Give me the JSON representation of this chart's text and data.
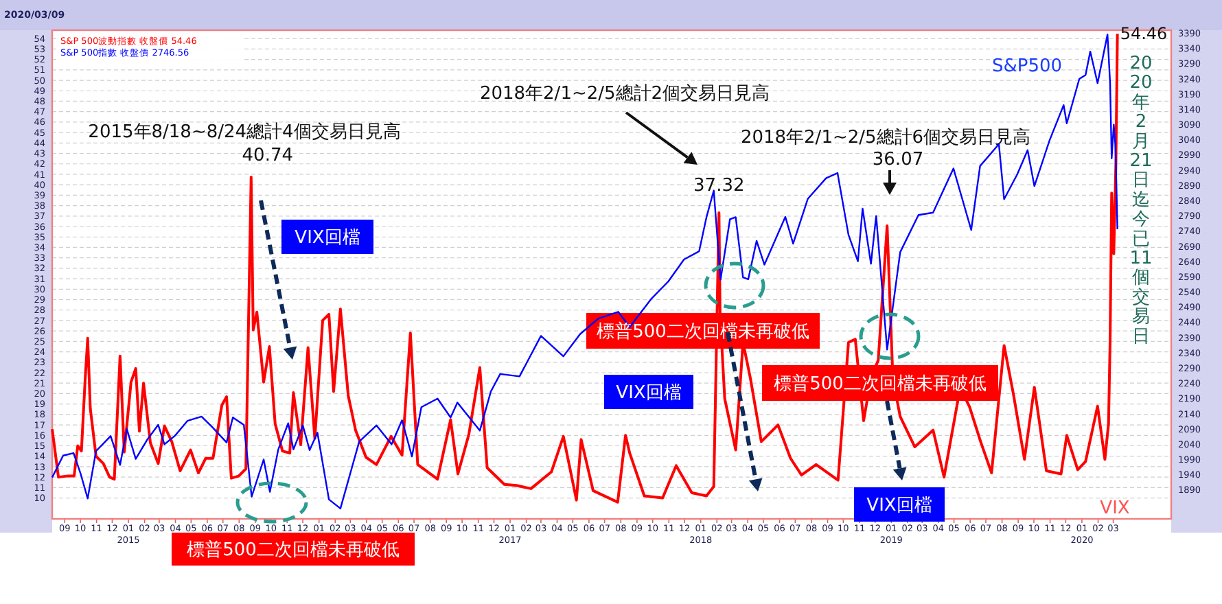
{
  "chart_data": {
    "type": "line",
    "title": "2020/03/09",
    "annotations": [
      "2015年8/18~8/24總計4個交易日見高",
      {
        "text": "40.74",
        "x": "2015-08-24",
        "y": 40.74
      },
      "VIX回檔",
      "2018年2/1~2/5總計2個交易日見高",
      {
        "text": "37.32",
        "x": "2018-02-05",
        "y": 37.32
      },
      "2018年2/1~2/5總計6個交易日見高",
      "36.07",
      "標普500二次回檔未再破低",
      "VIX回檔",
      "標普500二次回檔未再破低",
      "VIX回檔",
      "標普500二次回檔未再破低",
      {
        "text": "54.46",
        "x": "2020-03-09",
        "y": 54.46
      },
      "2020年2月21日迄今已11個交易日",
      "S&P500",
      "VIX"
    ],
    "legend": "top left",
    "grid": "y",
    "xlim": [
      "2014-08-08",
      "2020-06-20"
    ],
    "xticks": [
      {
        "value": "2014-09-01",
        "label": "09"
      },
      {
        "value": "2014-10-01",
        "label": "10"
      },
      {
        "value": "2014-11-01",
        "label": "11"
      },
      {
        "value": "2014-12-01",
        "label": "12"
      },
      {
        "value": "2015-01-01",
        "label": "01\n2015"
      },
      {
        "value": "2015-02-01",
        "label": "02"
      },
      {
        "value": "2015-03-01",
        "label": "03"
      },
      {
        "value": "2015-04-01",
        "label": "04"
      },
      {
        "value": "2015-05-01",
        "label": "05"
      },
      {
        "value": "2015-06-01",
        "label": "06"
      },
      {
        "value": "2015-07-01",
        "label": "07"
      },
      {
        "value": "2015-08-01",
        "label": "08"
      },
      {
        "value": "2015-09-01",
        "label": "09"
      },
      {
        "value": "2015-10-01",
        "label": "10"
      },
      {
        "value": "2015-11-01",
        "label": "11"
      },
      {
        "value": "2015-12-01",
        "label": "12"
      },
      {
        "value": "2016-01-01",
        "label": "01"
      },
      {
        "value": "2016-02-01",
        "label": "02"
      },
      {
        "value": "2016-03-01",
        "label": "03"
      },
      {
        "value": "2016-04-01",
        "label": "04"
      },
      {
        "value": "2016-05-01",
        "label": "05"
      },
      {
        "value": "2016-06-01",
        "label": "06"
      },
      {
        "value": "2016-07-01",
        "label": "07"
      },
      {
        "value": "2016-08-01",
        "label": "08"
      },
      {
        "value": "2016-09-01",
        "label": "09"
      },
      {
        "value": "2016-10-01",
        "label": "10"
      },
      {
        "value": "2016-11-01",
        "label": "11"
      },
      {
        "value": "2016-12-01",
        "label": "12"
      },
      {
        "value": "2017-01-01",
        "label": "01\n2017"
      },
      {
        "value": "2017-02-01",
        "label": "02"
      },
      {
        "value": "2017-03-01",
        "label": "03"
      },
      {
        "value": "2017-04-01",
        "label": "04"
      },
      {
        "value": "2017-05-01",
        "label": "05"
      },
      {
        "value": "2017-06-01",
        "label": "06"
      },
      {
        "value": "2017-07-01",
        "label": "07"
      },
      {
        "value": "2017-08-01",
        "label": "08"
      },
      {
        "value": "2017-09-01",
        "label": "09"
      },
      {
        "value": "2017-10-01",
        "label": "10"
      },
      {
        "value": "2017-11-01",
        "label": "11"
      },
      {
        "value": "2017-12-01",
        "label": "12"
      },
      {
        "value": "2018-01-01",
        "label": "01\n2018"
      },
      {
        "value": "2018-02-01",
        "label": "02"
      },
      {
        "value": "2018-03-01",
        "label": "03"
      },
      {
        "value": "2018-04-01",
        "label": "04"
      },
      {
        "value": "2018-05-01",
        "label": "05"
      },
      {
        "value": "2018-06-01",
        "label": "06"
      },
      {
        "value": "2018-07-01",
        "label": "07"
      },
      {
        "value": "2018-08-01",
        "label": "08"
      },
      {
        "value": "2018-09-01",
        "label": "09"
      },
      {
        "value": "2018-10-01",
        "label": "10"
      },
      {
        "value": "2018-11-01",
        "label": "11"
      },
      {
        "value": "2018-12-01",
        "label": "12"
      },
      {
        "value": "2019-01-01",
        "label": "01\n2019"
      },
      {
        "value": "2019-02-01",
        "label": "02"
      },
      {
        "value": "2019-03-01",
        "label": "03"
      },
      {
        "value": "2019-04-01",
        "label": "04"
      },
      {
        "value": "2019-05-01",
        "label": "05"
      },
      {
        "value": "2019-06-01",
        "label": "06"
      },
      {
        "value": "2019-07-01",
        "label": "07"
      },
      {
        "value": "2019-08-01",
        "label": "08"
      },
      {
        "value": "2019-09-01",
        "label": "09"
      },
      {
        "value": "2019-10-01",
        "label": "10"
      },
      {
        "value": "2019-11-01",
        "label": "11"
      },
      {
        "value": "2019-12-01",
        "label": "12"
      },
      {
        "value": "2020-01-01",
        "label": "01\n2020"
      },
      {
        "value": "2020-02-01",
        "label": "02"
      },
      {
        "value": "2020-03-01",
        "label": "03"
      }
    ],
    "ylim": [
      8,
      54.8
    ],
    "yticks": [
      10,
      11,
      12,
      13,
      14,
      15,
      16,
      17,
      18,
      19,
      20,
      21,
      22,
      23,
      24,
      25,
      26,
      27,
      28,
      29,
      30,
      31,
      32,
      33,
      34,
      35,
      36,
      37,
      38,
      39,
      40,
      41,
      42,
      43,
      44,
      45,
      46,
      47,
      48,
      49,
      50,
      51,
      52,
      53,
      54
    ],
    "y2lim": [
      1795,
      3400
    ],
    "y2ticks": [
      1890,
      1940,
      1990,
      2040,
      2090,
      2140,
      2190,
      2240,
      2290,
      2340,
      2390,
      2440,
      2490,
      2540,
      2590,
      2640,
      2690,
      2740,
      2790,
      2840,
      2890,
      2940,
      2990,
      3040,
      3090,
      3140,
      3190,
      3240,
      3290,
      3340,
      3390
    ],
    "series": [
      {
        "name": "S&P 500波動指數 收盤價 54.46",
        "color": "#ff0000",
        "x": [
          "2014-08-08",
          "2014-08-20",
          "2014-09-05",
          "2014-09-19",
          "2014-09-26",
          "2014-10-03",
          "2014-10-10",
          "2014-10-15",
          "2014-10-20",
          "2014-10-31",
          "2014-11-14",
          "2014-11-26",
          "2014-12-05",
          "2014-12-16",
          "2014-12-24",
          "2015-01-06",
          "2015-01-15",
          "2015-01-22",
          "2015-01-30",
          "2015-02-12",
          "2015-02-27",
          "2015-03-11",
          "2015-03-25",
          "2015-04-10",
          "2015-04-30",
          "2015-05-15",
          "2015-05-29",
          "2015-06-12",
          "2015-06-29",
          "2015-07-08",
          "2015-07-17",
          "2015-07-31",
          "2015-08-14",
          "2015-08-24",
          "2015-08-28",
          "2015-09-04",
          "2015-09-17",
          "2015-09-28",
          "2015-10-09",
          "2015-10-23",
          "2015-11-06",
          "2015-11-13",
          "2015-11-27",
          "2015-12-11",
          "2015-12-24",
          "2016-01-08",
          "2016-01-20",
          "2016-01-29",
          "2016-02-11",
          "2016-02-26",
          "2016-03-11",
          "2016-03-31",
          "2016-04-20",
          "2016-05-18",
          "2016-06-08",
          "2016-06-24",
          "2016-07-08",
          "2016-08-15",
          "2016-09-09",
          "2016-09-23",
          "2016-10-14",
          "2016-11-04",
          "2016-11-18",
          "2016-12-21",
          "2017-01-13",
          "2017-02-10",
          "2017-03-21",
          "2017-04-13",
          "2017-05-08",
          "2017-05-17",
          "2017-06-09",
          "2017-07-26",
          "2017-08-10",
          "2017-08-18",
          "2017-09-15",
          "2017-10-20",
          "2017-11-15",
          "2017-12-15",
          "2018-01-12",
          "2018-01-26",
          "2018-02-05",
          "2018-02-07",
          "2018-02-16",
          "2018-03-09",
          "2018-03-23",
          "2018-04-06",
          "2018-04-27",
          "2018-05-29",
          "2018-06-22",
          "2018-07-13",
          "2018-08-10",
          "2018-09-21",
          "2018-10-11",
          "2018-10-24",
          "2018-11-09",
          "2018-11-23",
          "2018-12-07",
          "2018-12-24",
          "2019-01-04",
          "2019-01-18",
          "2019-02-15",
          "2019-03-22",
          "2019-04-12",
          "2019-05-13",
          "2019-05-31",
          "2019-06-21",
          "2019-07-12",
          "2019-08-05",
          "2019-08-23",
          "2019-09-13",
          "2019-10-02",
          "2019-10-25",
          "2019-11-22",
          "2019-12-03",
          "2019-12-24",
          "2020-01-08",
          "2020-01-31",
          "2020-02-14",
          "2020-02-21",
          "2020-02-24",
          "2020-02-27",
          "2020-03-02",
          "2020-03-05",
          "2020-03-06",
          "2020-03-09"
        ],
        "values": [
          16.6,
          12.0,
          12.1,
          12.1,
          15.0,
          14.5,
          21.2,
          25.3,
          18.6,
          14.0,
          13.3,
          12.0,
          11.8,
          23.6,
          14.4,
          21.1,
          22.4,
          16.4,
          21.0,
          15.3,
          13.3,
          16.9,
          15.4,
          12.6,
          14.6,
          12.4,
          13.8,
          13.8,
          18.9,
          19.7,
          11.9,
          12.1,
          12.8,
          40.74,
          26.1,
          27.8,
          21.1,
          24.5,
          17.1,
          14.5,
          14.3,
          20.1,
          15.1,
          24.4,
          15.7,
          27.0,
          27.6,
          20.2,
          28.1,
          19.8,
          16.5,
          13.9,
          13.2,
          15.9,
          14.1,
          25.8,
          13.2,
          11.8,
          17.5,
          12.3,
          16.1,
          22.5,
          12.9,
          11.3,
          11.2,
          10.9,
          12.5,
          15.9,
          9.8,
          15.6,
          10.7,
          9.6,
          16.0,
          14.3,
          10.2,
          10.0,
          13.1,
          10.5,
          10.2,
          11.1,
          37.32,
          27.7,
          19.5,
          14.6,
          24.9,
          21.5,
          15.4,
          17.0,
          13.8,
          12.2,
          13.2,
          11.7,
          24.9,
          25.2,
          17.4,
          21.5,
          23.2,
          36.07,
          21.4,
          17.8,
          14.9,
          16.5,
          12.0,
          20.6,
          18.7,
          15.4,
          12.4,
          24.6,
          19.9,
          13.7,
          20.6,
          12.6,
          12.3,
          16.0,
          12.7,
          13.5,
          18.8,
          13.7,
          17.1,
          25.0,
          39.2,
          33.4,
          39.6,
          41.9,
          54.46
        ]
      },
      {
        "name": "S&P 500指數 收盤價 2746.56",
        "color": "#0000ff",
        "axis": "y2",
        "x": [
          "2014-08-08",
          "2014-08-29",
          "2014-09-18",
          "2014-10-01",
          "2014-10-15",
          "2014-10-31",
          "2014-11-28",
          "2014-12-16",
          "2014-12-29",
          "2015-01-15",
          "2015-02-06",
          "2015-02-27",
          "2015-03-11",
          "2015-03-31",
          "2015-04-24",
          "2015-05-21",
          "2015-06-12",
          "2015-07-08",
          "2015-07-20",
          "2015-08-10",
          "2015-08-25",
          "2015-09-17",
          "2015-09-29",
          "2015-10-15",
          "2015-11-03",
          "2015-11-13",
          "2015-12-01",
          "2015-12-14",
          "2015-12-29",
          "2016-01-20",
          "2016-02-11",
          "2016-03-18",
          "2016-04-20",
          "2016-05-19",
          "2016-06-08",
          "2016-06-27",
          "2016-07-15",
          "2016-08-15",
          "2016-09-09",
          "2016-09-22",
          "2016-11-04",
          "2016-11-25",
          "2016-12-13",
          "2017-01-19",
          "2017-03-01",
          "2017-04-13",
          "2017-05-15",
          "2017-06-19",
          "2017-07-27",
          "2017-08-18",
          "2017-09-29",
          "2017-10-31",
          "2017-11-30",
          "2017-12-29",
          "2018-01-12",
          "2018-01-26",
          "2018-02-08",
          "2018-02-26",
          "2018-03-09",
          "2018-03-23",
          "2018-04-02",
          "2018-04-18",
          "2018-05-03",
          "2018-06-12",
          "2018-06-27",
          "2018-07-25",
          "2018-08-29",
          "2018-09-20",
          "2018-10-11",
          "2018-10-29",
          "2018-11-07",
          "2018-11-23",
          "2018-12-03",
          "2018-12-24",
          "2019-01-18",
          "2019-02-22",
          "2019-03-22",
          "2019-04-30",
          "2019-06-03",
          "2019-06-20",
          "2019-07-26",
          "2019-08-05",
          "2019-08-30",
          "2019-09-19",
          "2019-10-02",
          "2019-10-31",
          "2019-11-27",
          "2019-12-03",
          "2019-12-27",
          "2020-01-08",
          "2020-01-17",
          "2020-01-31",
          "2020-02-19",
          "2020-02-24",
          "2020-02-27",
          "2020-03-02",
          "2020-03-05",
          "2020-03-06",
          "2020-03-09"
        ],
        "values": [
          1931,
          2003,
          2011,
          1946,
          1862,
          2018,
          2067,
          1972,
          2090,
          1992,
          2055,
          2104,
          2040,
          2068,
          2117,
          2131,
          2094,
          2046,
          2128,
          2104,
          1868,
          1990,
          1884,
          2023,
          2109,
          2023,
          2102,
          2021,
          2078,
          1859,
          1829,
          2049,
          2102,
          2040,
          2119,
          2000,
          2162,
          2190,
          2128,
          2177,
          2085,
          2213,
          2271,
          2263,
          2396,
          2329,
          2402,
          2453,
          2475,
          2425,
          2519,
          2575,
          2647,
          2674,
          2786,
          2873,
          2581,
          2779,
          2786,
          2588,
          2582,
          2708,
          2630,
          2787,
          2699,
          2846,
          2914,
          2931,
          2728,
          2641,
          2814,
          2633,
          2790,
          2351,
          2671,
          2793,
          2801,
          2946,
          2744,
          2954,
          3026,
          2845,
          2926,
          3006,
          2888,
          3038,
          3154,
          3094,
          3240,
          3253,
          3330,
          3226,
          3386,
          3226,
          2979,
          3090,
          3024,
          2972,
          2746.56
        ]
      }
    ]
  }
}
